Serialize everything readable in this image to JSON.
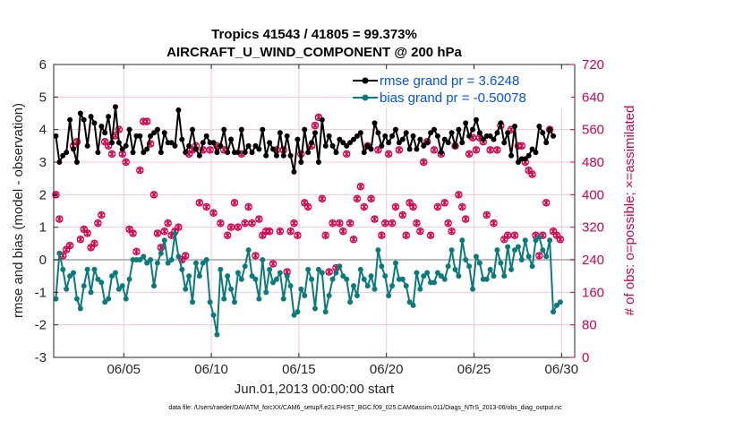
{
  "chart_data": {
    "type": "line",
    "title_line1": "Tropics 41543 / 41805 = 99.373%",
    "title_line2": "AIRCRAFT_U_WIND_COMPONENT @ 200 hPa",
    "xlabel": "Jun.01,2013 00:00:00 start",
    "ylabel_left": "rmse and bias (model - observation)",
    "ylabel_right": "# of obs: o=possible; ×=assimilated",
    "x_range_days": [
      1.0,
      30.75
    ],
    "ylim_left": [
      -3,
      6
    ],
    "ylim_right": [
      0,
      720
    ],
    "yticks_left": [
      "-3",
      "-2",
      "-1",
      "0",
      "1",
      "2",
      "3",
      "4",
      "5",
      "6"
    ],
    "yticks_right": [
      "0",
      "80",
      "160",
      "240",
      "320",
      "400",
      "480",
      "560",
      "640",
      "720"
    ],
    "xticks": [
      {
        "day": 5,
        "label": "06/05"
      },
      {
        "day": 10,
        "label": "06/10"
      },
      {
        "day": 15,
        "label": "06/15"
      },
      {
        "day": 20,
        "label": "06/20"
      },
      {
        "day": 25,
        "label": "06/25"
      },
      {
        "day": 30,
        "label": "06/30"
      }
    ],
    "grid": true,
    "legend_position": "top-right",
    "colors": {
      "rmse": "#000000",
      "bias": "#0a7b7b",
      "obs": "#d6004c",
      "zero": "#bbbbbb",
      "grid": "#f4c6d6"
    },
    "series": [
      {
        "name": "rmse grand pr = 3.6248",
        "key": "rmse",
        "values": [
          3.8,
          3.0,
          3.2,
          3.3,
          4.3,
          3.4,
          3.0,
          4.5,
          4.3,
          3.5,
          4.4,
          4.2,
          3.3,
          4.1,
          3.9,
          4.4,
          3.6,
          4.7,
          3.6,
          3.4,
          3.5,
          4.0,
          3.3,
          3.8,
          3.8,
          3.3,
          3.4,
          3.8,
          3.9,
          4.0,
          3.3,
          3.9,
          3.6,
          3.6,
          3.5,
          4.6,
          3.7,
          3.3,
          3.5,
          4.0,
          3.4,
          3.2,
          3.6,
          3.8,
          3.6,
          3.6,
          3.3,
          3.5,
          4.0,
          3.3,
          3.7,
          3.3,
          3.3,
          4.0,
          3.3,
          3.5,
          3.3,
          3.5,
          3.4,
          4.0,
          3.2,
          3.6,
          3.4,
          3.2,
          3.9,
          3.2,
          3.8,
          3.2,
          2.7,
          3.7,
          3.0,
          4.0,
          3.3,
          3.6,
          3.9,
          3.0,
          4.3,
          3.5,
          3.8,
          3.5,
          3.3,
          3.7,
          3.6,
          3.5,
          3.6,
          3.7,
          3.8,
          3.9,
          3.3,
          3.5,
          3.4,
          4.2,
          3.9,
          3.5,
          3.8,
          3.6,
          3.8,
          4.0,
          3.6,
          3.7,
          3.9,
          3.4,
          3.8,
          3.4,
          3.7,
          3.5,
          3.6,
          3.9,
          4.0,
          3.8,
          3.3,
          3.7,
          3.6,
          3.9,
          3.5,
          4.0,
          3.6,
          4.2,
          3.8,
          4.0,
          4.3,
          3.9,
          3.7,
          3.8,
          3.8,
          3.7,
          3.9,
          4.2,
          3.6,
          3.9,
          3.2,
          4.1,
          3.0,
          3.1,
          3.1,
          3.2,
          3.4,
          3.3,
          4.1,
          3.9,
          3.6,
          4.0,
          3.8
        ]
      },
      {
        "name": "bias grand pr = -0.50078",
        "key": "bias",
        "values": [
          -1.2,
          0.2,
          -0.3,
          -0.9,
          -0.5,
          -0.4,
          -1.2,
          -1.5,
          -0.8,
          -0.3,
          -1.0,
          -0.3,
          -0.6,
          -0.7,
          -1.3,
          -1.2,
          -0.5,
          -0.4,
          -0.9,
          -0.8,
          -1.2,
          -0.6,
          0.0,
          0.0,
          0.0,
          0.1,
          -0.1,
          0.0,
          -0.8,
          -0.1,
          0.2,
          0.6,
          -0.1,
          0.0,
          0.8,
          0.1,
          -0.3,
          -0.9,
          -0.5,
          -1.3,
          -0.1,
          -0.5,
          -0.1,
          0.0,
          -1.3,
          -1.7,
          -2.3,
          -0.3,
          -1.2,
          -0.5,
          -0.9,
          -1.3,
          -0.4,
          -0.6,
          -0.2,
          0.3,
          -0.5,
          -0.6,
          -1.2,
          0.0,
          -1.0,
          -0.3,
          -0.7,
          -0.6,
          -0.4,
          -1.2,
          -0.5,
          -0.8,
          -1.7,
          -1.6,
          -0.9,
          -1.1,
          -0.3,
          -0.6,
          -1.5,
          -0.3,
          -0.4,
          -1.6,
          -1.1,
          -0.6,
          -0.4,
          -0.2,
          -0.5,
          -0.6,
          -1.3,
          -0.8,
          -1.1,
          -0.3,
          -0.6,
          -0.8,
          -0.5,
          -0.9,
          0.3,
          -0.2,
          -0.5,
          -1.1,
          -0.8,
          -0.1,
          -0.6,
          -0.6,
          -0.8,
          -1.3,
          -1.4,
          -0.4,
          -0.9,
          -0.5,
          -0.4,
          -0.7,
          -0.7,
          -0.4,
          -0.5,
          -0.6,
          -0.2,
          0.3,
          -0.3,
          -0.5,
          0.6,
          0.0,
          -0.2,
          -0.9,
          0.1,
          -0.1,
          -0.6,
          -0.6,
          -0.3,
          -0.5,
          0.3,
          -0.1,
          -0.5,
          0.4,
          -0.3,
          0.3,
          0.4,
          0.0,
          0.6,
          0.1,
          -0.2,
          0.6,
          0.7,
          0.3,
          0.1,
          0.6,
          -1.6,
          -1.4,
          -1.3
        ]
      },
      {
        "name": "# of obs",
        "key": "obs",
        "values": [
          400,
          340,
          250,
          265,
          275,
          520,
          530,
          290,
          315,
          305,
          270,
          280,
          330,
          350,
          530,
          520,
          500,
          545,
          560,
          500,
          480,
          315,
          305,
          260,
          460,
          580,
          580,
          525,
          400,
          305,
          270,
          310,
          330,
          300,
          310,
          320,
          240,
          250,
          500,
          510,
          520,
          380,
          510,
          370,
          510,
          355,
          520,
          330,
          510,
          300,
          320,
          380,
          320,
          500,
          330,
          370,
          330,
          250,
          340,
          300,
          310,
          310,
          230,
          510,
          310,
          510,
          210,
          310,
          330,
          300,
          500,
          380,
          370,
          520,
          570,
          590,
          390,
          300,
          210,
          330,
          220,
          330,
          310,
          500,
          330,
          290,
          390,
          420,
          370,
          520,
          390,
          340,
          510,
          300,
          330,
          500,
          330,
          370,
          510,
          350,
          300,
          380,
          370,
          330,
          310,
          480,
          530,
          300,
          510,
          370,
          500,
          380,
          330,
          310,
          520,
          400,
          370,
          340,
          500,
          540,
          510,
          540,
          530,
          350,
          510,
          330,
          510,
          570,
          290,
          300,
          560,
          300,
          520,
          520,
          480,
          460,
          450,
          300,
          250,
          300,
          380,
          560,
          310,
          300,
          290
        ]
      }
    ]
  },
  "footer": {
    "data_file": "data file: /Users/raeder/DAI/ATM_forcXX/CAM6_setup/f.e21.FHIST_BGC.f09_025.CAM6assim.011/Diags_NTrS_2013-06/obs_diag_output.nc"
  }
}
